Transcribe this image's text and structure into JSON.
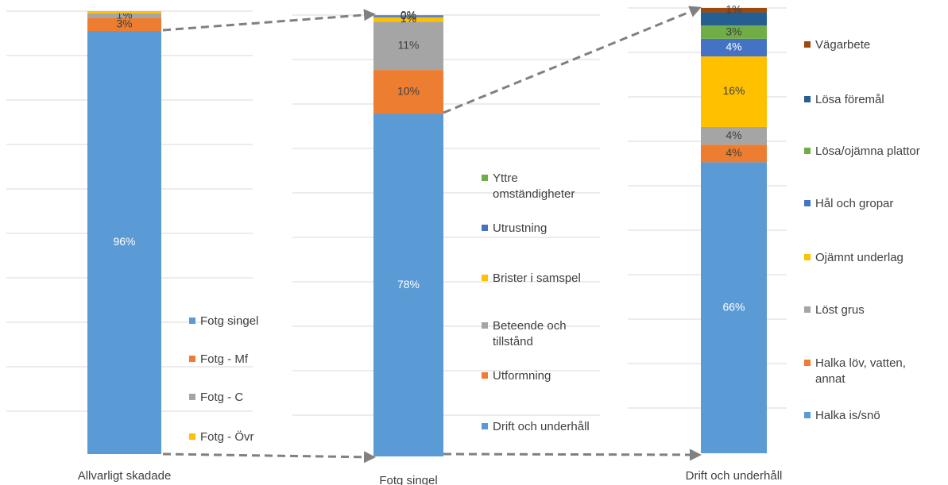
{
  "colors": {
    "blue": "#5b9bd5",
    "orange": "#ed7d31",
    "gray": "#a5a5a5",
    "yellow": "#ffc000",
    "darkblue": "#4472c4",
    "green": "#70ad47",
    "navy": "#255e91",
    "brown": "#9e480e",
    "connector": "#808080"
  },
  "chart_data": [
    {
      "type": "bar",
      "stacked": true,
      "categories": [
        "Allvarligt skadade"
      ],
      "ylim": [
        0,
        100
      ],
      "series": [
        {
          "name": "Fotg singel",
          "values": [
            96
          ],
          "label": "96%",
          "color": "#5b9bd5",
          "label_color": "#ffffff"
        },
        {
          "name": "Fotg - Mf",
          "values": [
            3
          ],
          "label": "3%",
          "color": "#ed7d31",
          "label_color": "#404040"
        },
        {
          "name": "Fotg - C",
          "values": [
            1
          ],
          "label": "1%",
          "color": "#a5a5a5",
          "label_color": "#404040"
        },
        {
          "name": "Fotg - Övr",
          "values": [
            0.5
          ],
          "label": "",
          "color": "#ffc000",
          "label_color": "#404040"
        }
      ],
      "legend_position": "right"
    },
    {
      "type": "bar",
      "stacked": true,
      "categories": [
        "Fotg singel"
      ],
      "ylim": [
        0,
        100
      ],
      "series": [
        {
          "name": "Drift och underhåll",
          "values": [
            78
          ],
          "label": "78%",
          "color": "#5b9bd5",
          "label_color": "#ffffff"
        },
        {
          "name": "Utformning",
          "values": [
            10
          ],
          "label": "10%",
          "color": "#ed7d31",
          "label_color": "#404040"
        },
        {
          "name": "Beteende och tillstånd",
          "values": [
            11
          ],
          "label": "11%",
          "color": "#a5a5a5",
          "label_color": "#404040"
        },
        {
          "name": "Brister i samspel",
          "values": [
            1
          ],
          "label": "1%",
          "color": "#ffc000",
          "label_color": "#404040"
        },
        {
          "name": "Utrustning",
          "values": [
            0.3
          ],
          "label": "0%",
          "color": "#4472c4",
          "label_color": "#404040"
        },
        {
          "name": "Yttre omständigheter",
          "values": [
            0.2
          ],
          "label": "0%",
          "color": "#70ad47",
          "label_color": "#404040"
        }
      ],
      "legend_position": "right"
    },
    {
      "type": "bar",
      "stacked": true,
      "categories": [
        "Drift och underhåll"
      ],
      "ylim": [
        0,
        100
      ],
      "series": [
        {
          "name": "Halka is/snö",
          "values": [
            66
          ],
          "label": "66%",
          "color": "#5b9bd5",
          "label_color": "#ffffff"
        },
        {
          "name": "Halka löv, vatten, annat",
          "values": [
            4
          ],
          "label": "4%",
          "color": "#ed7d31",
          "label_color": "#404040"
        },
        {
          "name": "Löst grus",
          "values": [
            4
          ],
          "label": "4%",
          "color": "#a5a5a5",
          "label_color": "#404040"
        },
        {
          "name": "Ojämnt underlag",
          "values": [
            16
          ],
          "label": "16%",
          "color": "#ffc000",
          "label_color": "#404040"
        },
        {
          "name": "Hål och gropar",
          "values": [
            4
          ],
          "label": "4%",
          "color": "#4472c4",
          "label_color": "#ffffff"
        },
        {
          "name": "Lösa/ojämna plattor",
          "values": [
            3
          ],
          "label": "3%",
          "color": "#70ad47",
          "label_color": "#404040"
        },
        {
          "name": "Lösa föremål",
          "values": [
            3
          ],
          "label": "",
          "color": "#255e91",
          "label_color": "#404040"
        },
        {
          "name": "Vägarbete",
          "values": [
            1
          ],
          "label": "1%",
          "color": "#9e480e",
          "label_color": "#404040"
        }
      ],
      "legend_position": "right"
    }
  ]
}
